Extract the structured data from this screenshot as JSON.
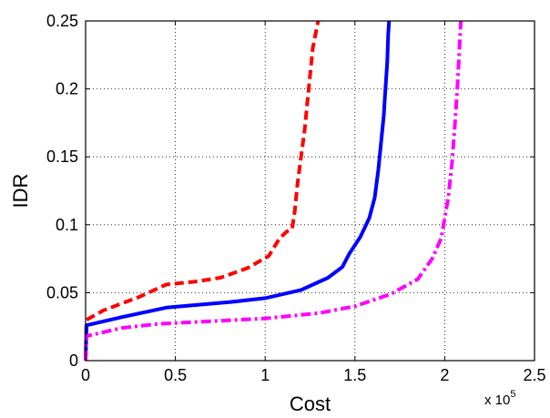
{
  "chart_data": {
    "type": "line",
    "title": "",
    "xlabel": "Cost",
    "ylabel": "IDR",
    "xlim": [
      0,
      250000
    ],
    "ylim": [
      0,
      0.25
    ],
    "x_scale_note": "x 10",
    "x_scale_exponent": "5",
    "x_ticks": [
      0,
      50000,
      100000,
      150000,
      200000,
      250000
    ],
    "x_tick_labels": [
      "0",
      "0.5",
      "1",
      "1.5",
      "2",
      "2.5"
    ],
    "y_ticks": [
      0,
      0.05,
      0.1,
      0.15,
      0.2,
      0.25
    ],
    "y_tick_labels": [
      "0",
      "0.05",
      "0.1",
      "0.15",
      "0.2",
      "0.25"
    ],
    "grid": true,
    "legend": false,
    "series": [
      {
        "color": "#ff0000",
        "style": "dashed",
        "points": [
          [
            0,
            0.0
          ],
          [
            500,
            0.03
          ],
          [
            10000,
            0.037
          ],
          [
            30000,
            0.047
          ],
          [
            45000,
            0.056
          ],
          [
            60000,
            0.058
          ],
          [
            75000,
            0.061
          ],
          [
            90000,
            0.068
          ],
          [
            102000,
            0.077
          ],
          [
            108000,
            0.09
          ],
          [
            112000,
            0.095
          ],
          [
            115000,
            0.097
          ],
          [
            116500,
            0.11
          ],
          [
            118000,
            0.13
          ],
          [
            120000,
            0.15
          ],
          [
            122000,
            0.17
          ],
          [
            123500,
            0.19
          ],
          [
            125000,
            0.21
          ],
          [
            126500,
            0.23
          ],
          [
            128000,
            0.24
          ],
          [
            129500,
            0.25
          ]
        ]
      },
      {
        "color": "#0000ff",
        "style": "solid",
        "points": [
          [
            0,
            0.0
          ],
          [
            500,
            0.026
          ],
          [
            20000,
            0.032
          ],
          [
            45000,
            0.039
          ],
          [
            80000,
            0.043
          ],
          [
            100000,
            0.046
          ],
          [
            120000,
            0.052
          ],
          [
            135000,
            0.061
          ],
          [
            143000,
            0.069
          ],
          [
            147000,
            0.079
          ],
          [
            153000,
            0.091
          ],
          [
            158000,
            0.105
          ],
          [
            161000,
            0.12
          ],
          [
            163000,
            0.14
          ],
          [
            164500,
            0.16
          ],
          [
            166000,
            0.18
          ],
          [
            167000,
            0.2
          ],
          [
            168000,
            0.22
          ],
          [
            168500,
            0.24
          ],
          [
            169000,
            0.25
          ]
        ]
      },
      {
        "color": "#ff00ff",
        "style": "dashdot",
        "points": [
          [
            0,
            0.0
          ],
          [
            500,
            0.018
          ],
          [
            20000,
            0.024
          ],
          [
            40000,
            0.027
          ],
          [
            70000,
            0.029
          ],
          [
            100000,
            0.031
          ],
          [
            130000,
            0.035
          ],
          [
            150000,
            0.04
          ],
          [
            170000,
            0.049
          ],
          [
            185000,
            0.06
          ],
          [
            193000,
            0.075
          ],
          [
            198000,
            0.09
          ],
          [
            200000,
            0.105
          ],
          [
            202000,
            0.12
          ],
          [
            204000,
            0.145
          ],
          [
            205500,
            0.17
          ],
          [
            207000,
            0.2
          ],
          [
            208000,
            0.225
          ],
          [
            209000,
            0.25
          ]
        ]
      }
    ]
  }
}
